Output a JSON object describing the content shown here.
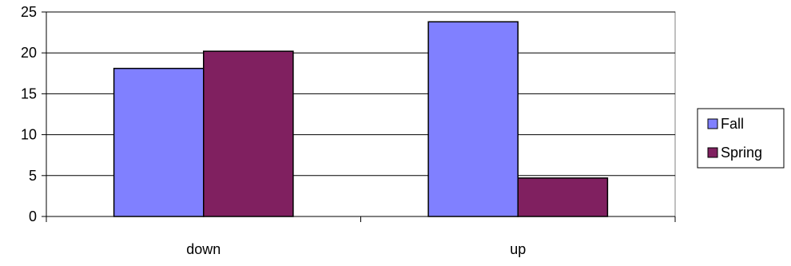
{
  "chart_data": {
    "type": "bar",
    "categories": [
      "down",
      "up"
    ],
    "series": [
      {
        "name": "Fall",
        "values": [
          18.1,
          23.8
        ],
        "color": "#8080FF"
      },
      {
        "name": "Spring",
        "values": [
          20.2,
          4.7
        ],
        "color": "#802060"
      }
    ],
    "ylim": [
      0,
      25
    ],
    "yticks": [
      0,
      5,
      10,
      15,
      20,
      25
    ],
    "grid": true,
    "legend": "right",
    "title": "",
    "xlabel": "",
    "ylabel": ""
  }
}
